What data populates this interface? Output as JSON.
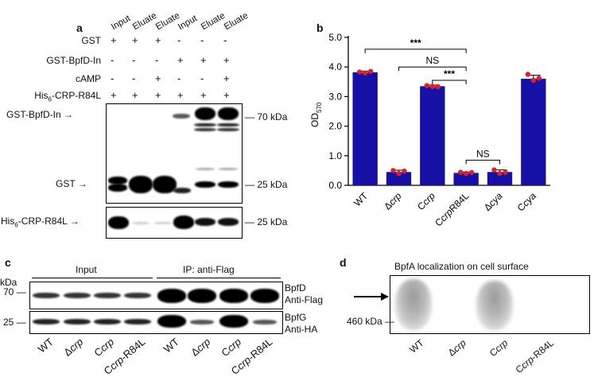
{
  "panel_a": {
    "letter": "a",
    "lane_headers": [
      "Input",
      "Eluate",
      "Eluate",
      "Input",
      "Eluate",
      "Eluate"
    ],
    "rows": [
      {
        "label": "GST",
        "signs": [
          "+",
          "+",
          "+",
          "-",
          "-",
          "-"
        ]
      },
      {
        "label": "GST-BpfD-In",
        "signs": [
          "-",
          "-",
          "-",
          "+",
          "+",
          "+"
        ]
      },
      {
        "label": "cAMP",
        "signs": [
          "-",
          "-",
          "+",
          "-",
          "-",
          "+"
        ]
      },
      {
        "label_main": "His",
        "label_sub": "6",
        "label_rest": "-CRP-R84L",
        "signs": [
          "+",
          "+",
          "+",
          "+",
          "+",
          "+"
        ]
      }
    ],
    "arrow_labels": {
      "bpfd": "GST-BpfD-In",
      "gst": "GST",
      "his_main": "His",
      "his_sub": "6",
      "his_rest": "-CRP-R84L"
    },
    "markers": {
      "m70": "70 kDa",
      "m25a": "25 kDa",
      "m25b": "25 kDa"
    }
  },
  "panel_b": {
    "letter": "b",
    "sig_labels": [
      "***",
      "NS",
      "***",
      "NS"
    ]
  },
  "chart_data": {
    "type": "bar",
    "ylabel_main": "OD",
    "ylabel_sub": "570",
    "ylim": [
      0,
      5
    ],
    "yticks": [
      "0.0",
      "1.0",
      "2.0",
      "3.0",
      "4.0",
      "5.0"
    ],
    "categories": [
      "WT",
      "Δcrp",
      "Ccrp",
      "CcrpR84L",
      "Δcya",
      "Ccya"
    ],
    "values": [
      3.82,
      0.45,
      3.35,
      0.42,
      0.45,
      3.6
    ],
    "errors": [
      0.04,
      0.06,
      0.04,
      0.03,
      0.07,
      0.12
    ],
    "points": [
      [
        3.83,
        3.8,
        3.85
      ],
      [
        0.5,
        0.4,
        0.48
      ],
      [
        3.37,
        3.34,
        3.33
      ],
      [
        0.44,
        0.4,
        0.43
      ],
      [
        0.52,
        0.4,
        0.44
      ],
      [
        3.75,
        3.55,
        3.62
      ]
    ],
    "bar_color": "#1710a6",
    "point_color": "#e02020",
    "grid": false
  },
  "panel_c": {
    "letter": "c",
    "kda": "kDa",
    "group_input": "Input",
    "group_ip": "IP: anti-Flag",
    "m70": "70",
    "m25": "25",
    "right_labels": [
      "BpfD",
      "Anti-Flag",
      "BpfG",
      "Anti-HA"
    ],
    "lane_labels": [
      {
        "pre": "WT",
        "ital": "",
        "post": ""
      },
      {
        "pre": "Δ",
        "ital": "crp",
        "post": ""
      },
      {
        "pre": "C",
        "ital": "crp",
        "post": ""
      },
      {
        "pre": "C",
        "ital": "crp",
        "post": "-R84L"
      },
      {
        "pre": "WT",
        "ital": "",
        "post": ""
      },
      {
        "pre": "Δ",
        "ital": "crp",
        "post": ""
      },
      {
        "pre": "C",
        "ital": "crp",
        "post": ""
      },
      {
        "pre": "C",
        "ital": "crp",
        "post": "-R84L"
      }
    ]
  },
  "panel_d": {
    "letter": "d",
    "title": "BpfA localization on cell surface",
    "marker": "460 kDa",
    "lane_labels": [
      {
        "pre": "WT",
        "ital": "",
        "post": ""
      },
      {
        "pre": "Δ",
        "ital": "crp",
        "post": ""
      },
      {
        "pre": "C",
        "ital": "crp",
        "post": ""
      },
      {
        "pre": "C",
        "ital": "crp",
        "post": "-R84L"
      }
    ]
  }
}
